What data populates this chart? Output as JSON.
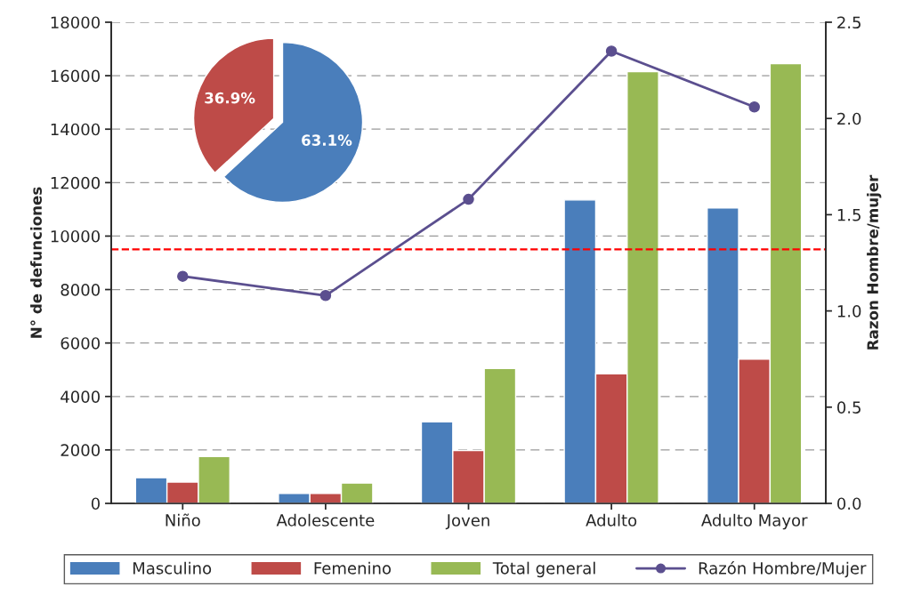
{
  "chart_data": [
    {
      "type": "bar",
      "categories": [
        "Niño",
        "Adolescente",
        "Joven",
        "Adulto",
        "Adulto Mayor"
      ],
      "series": [
        {
          "name": "Masculino",
          "color": "#4a7ebb",
          "values": [
            960,
            370,
            3050,
            11350,
            11050
          ]
        },
        {
          "name": "Femenino",
          "color": "#be4b48",
          "values": [
            800,
            370,
            1980,
            4850,
            5400
          ]
        },
        {
          "name": "Total general",
          "color": "#98b954",
          "values": [
            1750,
            760,
            5050,
            16150,
            16450
          ]
        },
        {
          "name": "Razón Hombre/Mujer",
          "type": "line",
          "axis": "y2",
          "color": "#5b4f8f",
          "marker": "circle",
          "values": [
            1.18,
            1.08,
            1.58,
            2.35,
            2.06
          ]
        }
      ],
      "ylabel": "N° de defunciones",
      "y2label": "Razon Hombre/mujer",
      "ylim": [
        0,
        18000
      ],
      "yticks": [
        0,
        2000,
        4000,
        6000,
        8000,
        10000,
        12000,
        14000,
        16000,
        18000
      ],
      "y2lim": [
        0,
        2.5
      ],
      "y2ticks": [
        {
          "value": 0,
          "label": "0.0"
        },
        {
          "value": 0.5,
          "label": "0.5"
        },
        {
          "value": 1,
          "label": "1.0"
        },
        {
          "value": 1.5,
          "label": "1.5"
        },
        {
          "value": 2,
          "label": "2.0"
        },
        {
          "value": 2.5,
          "label": "2.5"
        }
      ],
      "ref_lines": [
        {
          "axis": "y",
          "value": 9500,
          "color": "#ff0000",
          "line_style": "dashed"
        }
      ],
      "grid": "y",
      "legend": "bottom"
    },
    {
      "type": "pie",
      "categories": [
        null,
        null
      ],
      "values": [
        63.1,
        36.9
      ],
      "colors": [
        "#4a7ebb",
        "#be4b48"
      ],
      "value_labels": [
        "63.1%",
        "36.9%"
      ]
    }
  ]
}
